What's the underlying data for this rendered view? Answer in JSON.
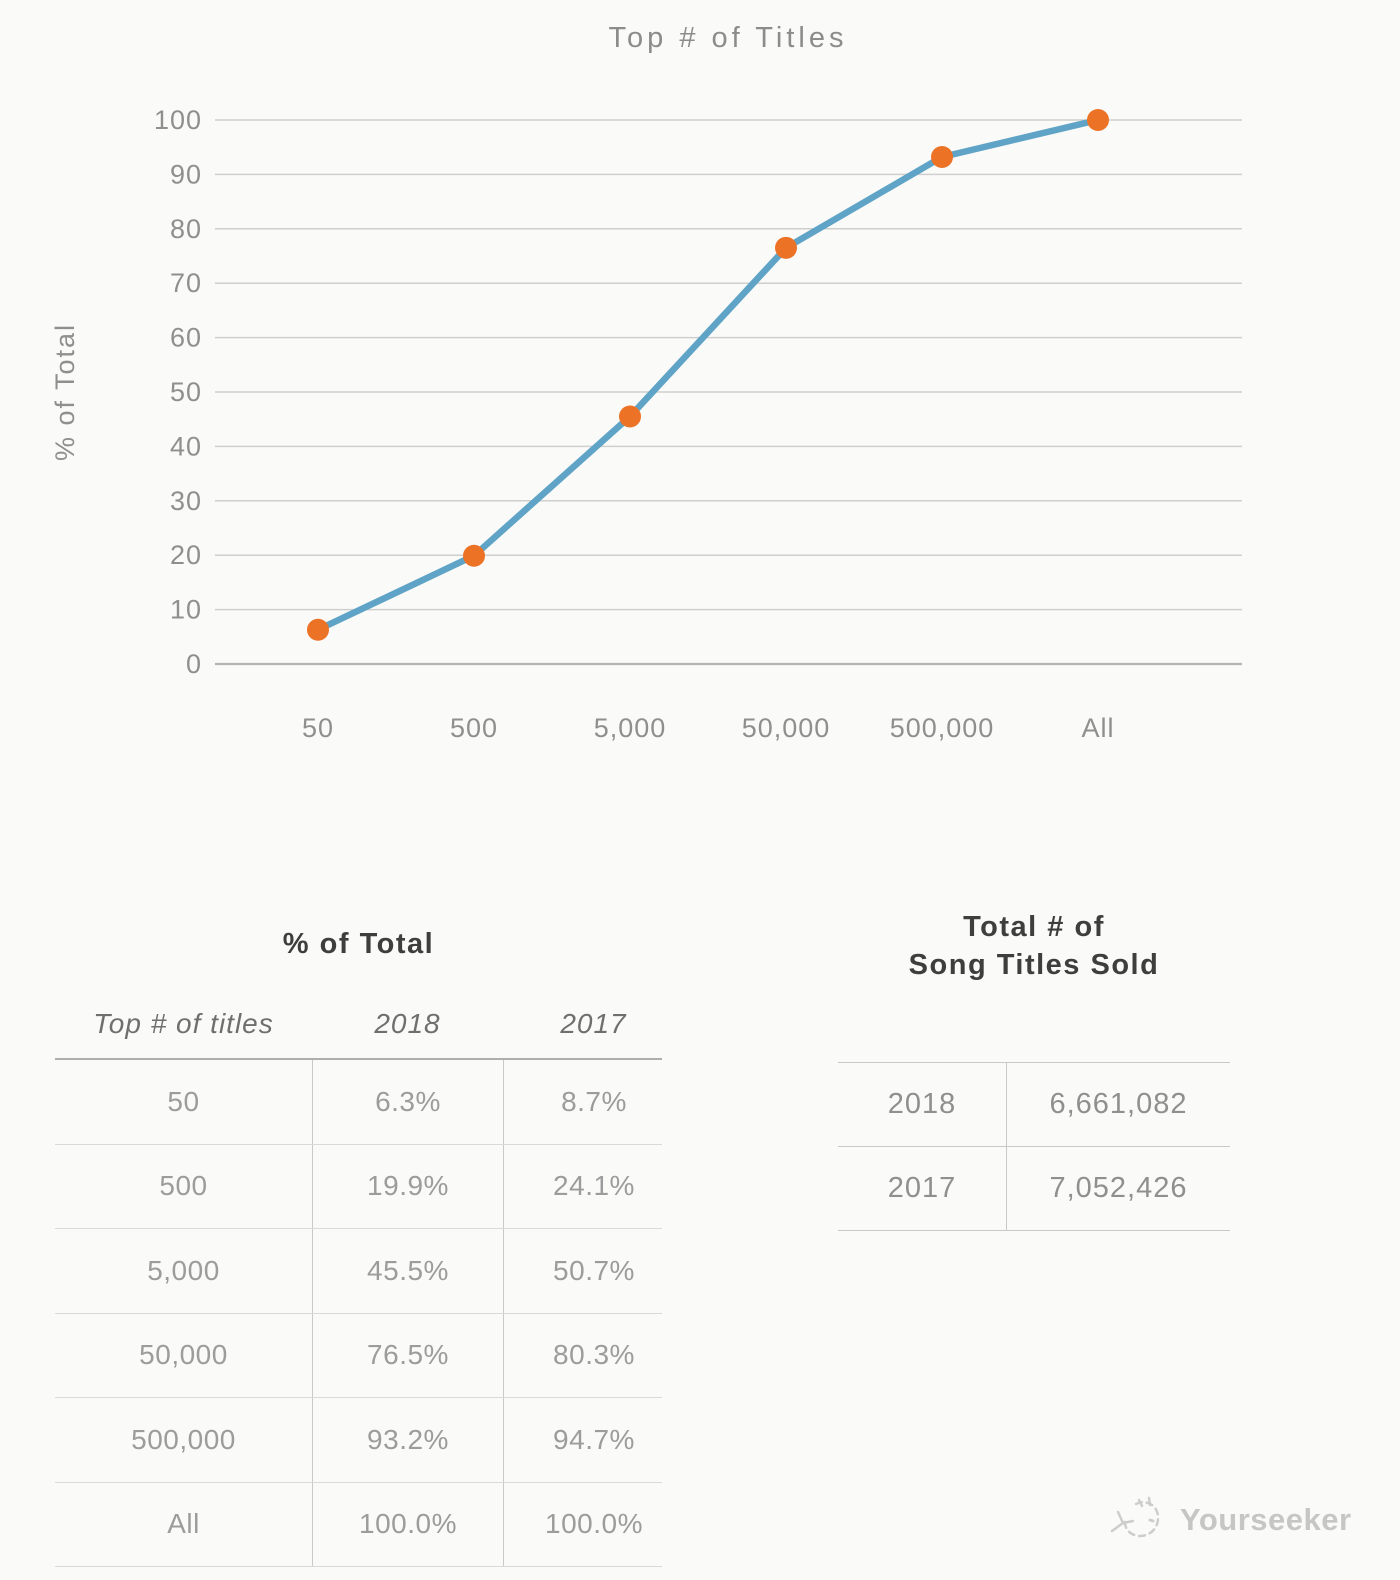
{
  "page": {
    "background": "#fafaf9"
  },
  "chart_data": {
    "type": "line",
    "title": "Top # of Titles",
    "xlabel": "",
    "ylabel": "% of Total",
    "categories": [
      "50",
      "500",
      "5,000",
      "50,000",
      "500,000",
      "All"
    ],
    "series": [
      {
        "name": "2018",
        "values": [
          6.3,
          19.9,
          45.5,
          76.5,
          93.2,
          100.0
        ]
      }
    ],
    "ylim": [
      0,
      100
    ],
    "ytick_step": 10,
    "grid": true,
    "legend_position": "none",
    "colors": {
      "line": "#5fa4c6",
      "marker": "#ec7226",
      "grid": "#cfcfcd",
      "axis": "#b4b4b2",
      "labels": "#8f8f8f",
      "title": "#8c8c8c"
    }
  },
  "tables": {
    "percent_of_total": {
      "title": "% of Total",
      "columns": [
        "Top # of titles",
        "2018",
        "2017"
      ],
      "rows": [
        [
          "50",
          "6.3%",
          "8.7%"
        ],
        [
          "500",
          "19.9%",
          "24.1%"
        ],
        [
          "5,000",
          "45.5%",
          "50.7%"
        ],
        [
          "50,000",
          "76.5%",
          "80.3%"
        ],
        [
          "500,000",
          "93.2%",
          "94.7%"
        ],
        [
          "All",
          "100.0%",
          "100.0%"
        ]
      ]
    },
    "song_titles_sold": {
      "title_line1": "Total # of",
      "title_line2": "Song Titles Sold",
      "rows": [
        [
          "2018",
          "6,661,082"
        ],
        [
          "2017",
          "7,052,426"
        ]
      ]
    }
  },
  "watermark": {
    "label": "Yourseeker",
    "icon": "doodle-cat-icon"
  }
}
